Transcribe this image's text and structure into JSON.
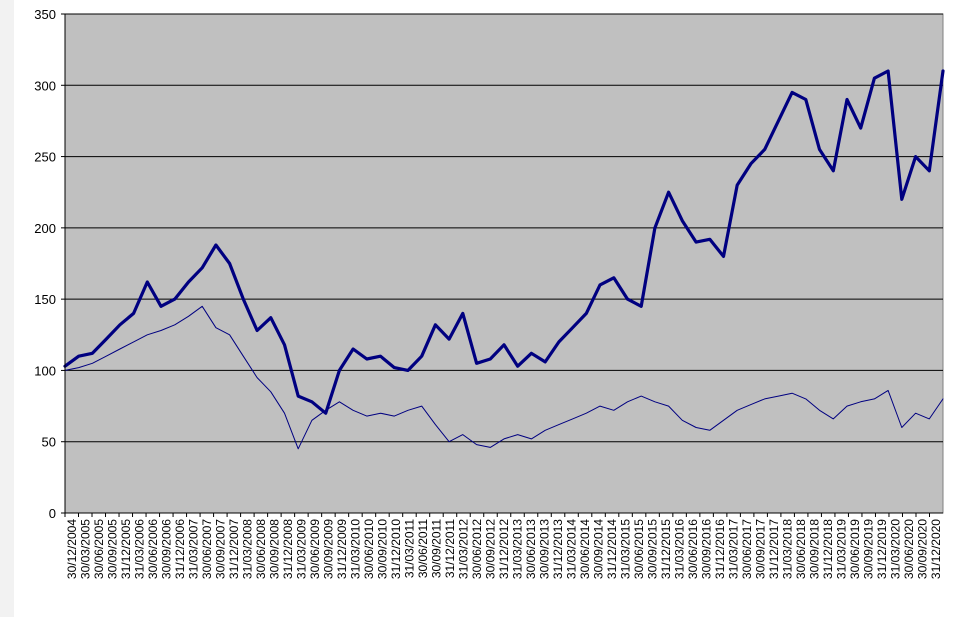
{
  "chart_data": {
    "type": "line",
    "title": "",
    "xlabel": "",
    "ylabel": "",
    "ylim": [
      0,
      350
    ],
    "yticks": [
      0,
      50,
      100,
      150,
      200,
      250,
      300,
      350
    ],
    "grid": true,
    "legend": "none",
    "plot_background": "#c0c0c0",
    "series_color": "#000080",
    "x_tick_labels": [
      "30/12/2004",
      "30/03/2005",
      "30/06/2005",
      "30/09/2005",
      "31/12/2005",
      "31/03/2006",
      "30/06/2006",
      "30/09/2006",
      "31/12/2006",
      "31/03/2007",
      "30/06/2007",
      "30/09/2007",
      "31/12/2007",
      "31/03/2008",
      "30/06/2008",
      "30/09/2008",
      "31/12/2008",
      "31/03/2009",
      "30/06/2009",
      "30/09/2009",
      "31/12/2009",
      "31/03/2010",
      "30/06/2010",
      "30/09/2010",
      "31/12/2010",
      "31/03/2011",
      "30/06/2011",
      "30/09/2011",
      "31/12/2011",
      "31/03/2012",
      "30/06/2012",
      "30/09/2012",
      "31/12/2012",
      "31/03/2013",
      "30/06/2013",
      "30/09/2013",
      "31/12/2013",
      "31/03/2014",
      "30/06/2014",
      "30/09/2014",
      "31/12/2014",
      "31/03/2015",
      "30/06/2015",
      "30/09/2015",
      "31/12/2015",
      "31/03/2016",
      "30/06/2016",
      "30/09/2016",
      "31/12/2016",
      "31/03/2017",
      "30/06/2017",
      "30/09/2017",
      "31/12/2017",
      "31/03/2018",
      "30/06/2018",
      "30/09/2018",
      "31/12/2018",
      "31/03/2019",
      "30/06/2019",
      "30/09/2019",
      "31/12/2019",
      "31/03/2020",
      "30/06/2020",
      "30/09/2020",
      "31/12/2020"
    ],
    "series": [
      {
        "style": "thick",
        "values": [
          103,
          110,
          112,
          122,
          132,
          140,
          162,
          145,
          150,
          162,
          172,
          188,
          175,
          150,
          128,
          137,
          118,
          82,
          78,
          70,
          100,
          115,
          108,
          110,
          102,
          100,
          110,
          132,
          122,
          140,
          105,
          108,
          118,
          103,
          112,
          106,
          120,
          130,
          140,
          160,
          165,
          150,
          145,
          200,
          225,
          205,
          190,
          192,
          180,
          230,
          245,
          255,
          275,
          295,
          290,
          255,
          240,
          290,
          270,
          305,
          310,
          220,
          250,
          240,
          310
        ]
      },
      {
        "style": "thin",
        "values": [
          100,
          102,
          105,
          110,
          115,
          120,
          125,
          128,
          132,
          138,
          145,
          130,
          125,
          110,
          95,
          85,
          70,
          45,
          65,
          72,
          78,
          72,
          68,
          70,
          68,
          72,
          75,
          62,
          50,
          55,
          48,
          46,
          52,
          55,
          52,
          58,
          62,
          66,
          70,
          75,
          72,
          78,
          82,
          78,
          75,
          65,
          60,
          58,
          65,
          72,
          76,
          80,
          82,
          84,
          80,
          72,
          66,
          75,
          78,
          80,
          86,
          60,
          70,
          66,
          80
        ]
      }
    ]
  }
}
